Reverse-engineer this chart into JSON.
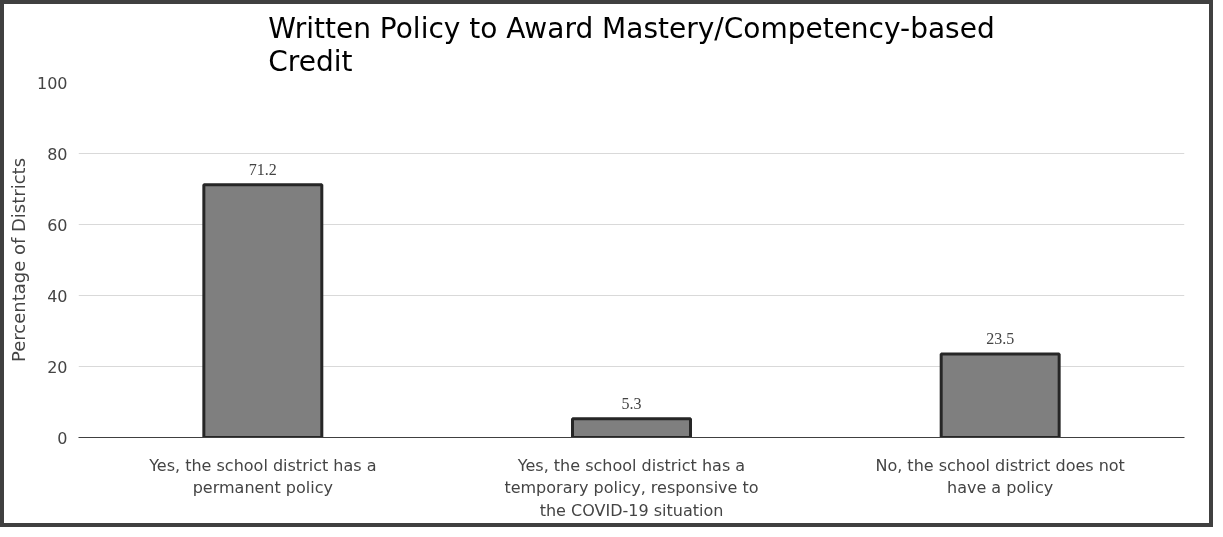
{
  "chart_data": {
    "type": "bar",
    "title": "Written Policy to Award Mastery/Competency-based Credit",
    "ylabel": "Percentage of Districts",
    "categories": [
      "Yes, the school district has a permanent policy",
      "Yes, the school district has a temporary policy, responsive to the COVID-19 situation",
      "No, the school district does not have a policy"
    ],
    "values": [
      71.2,
      5.3,
      23.5
    ],
    "color": "#7f7f7f",
    "ylim": [
      0,
      100
    ],
    "yticks": [
      0,
      20,
      40,
      60,
      80,
      100
    ],
    "grid": "y",
    "data_labels": true
  }
}
